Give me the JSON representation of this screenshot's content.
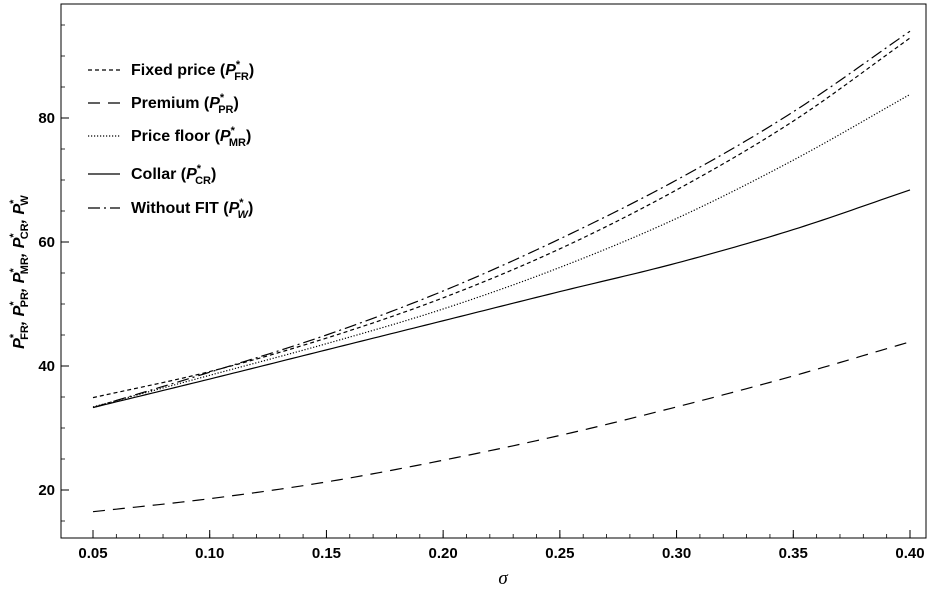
{
  "chart_data": {
    "type": "line",
    "xlabel": "σ",
    "ylabel_parts": [
      {
        "sym": "P",
        "sub": "FR"
      },
      {
        "sym": "P",
        "sub": "PR"
      },
      {
        "sym": "P",
        "sub": "MR"
      },
      {
        "sym": "P",
        "sub": "CR"
      },
      {
        "sym": "P",
        "sub": "W"
      }
    ],
    "ylabel_separator": ", ",
    "ylabel_star": "*",
    "xlim": [
      0.05,
      0.4
    ],
    "ylim": [
      12.5,
      97
    ],
    "x_ticks": [
      0.05,
      0.1,
      0.15,
      0.2,
      0.25,
      0.3,
      0.35,
      0.4
    ],
    "x_tick_labels": [
      "0.05",
      "0.10",
      "0.15",
      "0.20",
      "0.25",
      "0.30",
      "0.35",
      "0.40"
    ],
    "y_ticks": [
      20,
      40,
      60,
      80
    ],
    "y_tick_labels": [
      "20",
      "40",
      "60",
      "80"
    ],
    "grid": false,
    "legend_position": "top-left",
    "x": [
      0.05,
      0.1,
      0.15,
      0.2,
      0.25,
      0.3,
      0.35,
      0.4
    ],
    "series": [
      {
        "name": "Fixed price",
        "sym": "P",
        "sub": "FR",
        "style": "short-dash",
        "values": [
          34.9,
          39.1,
          44.5,
          51.0,
          58.9,
          68.4,
          79.5,
          92.9
        ]
      },
      {
        "name": "Premium",
        "sym": "P",
        "sub": "PR",
        "style": "long-dash",
        "values": [
          16.5,
          18.6,
          21.3,
          24.8,
          28.8,
          33.4,
          38.4,
          43.9
        ]
      },
      {
        "name": "Price floor",
        "sym": "P",
        "sub": "MR",
        "style": "dotted",
        "values": [
          33.4,
          38.5,
          43.6,
          49.2,
          55.9,
          63.8,
          73.2,
          83.8
        ]
      },
      {
        "name": "Collar",
        "sym": "P",
        "sub": "CR",
        "style": "solid",
        "values": [
          33.3,
          37.9,
          42.6,
          47.3,
          52.0,
          56.6,
          62.0,
          68.4
        ]
      },
      {
        "name": "Without FIT",
        "sym": "P",
        "sub": "W",
        "style": "dash-dot",
        "values": [
          33.3,
          39.0,
          45.0,
          52.1,
          60.5,
          70.0,
          81.0,
          94.0
        ]
      }
    ]
  }
}
